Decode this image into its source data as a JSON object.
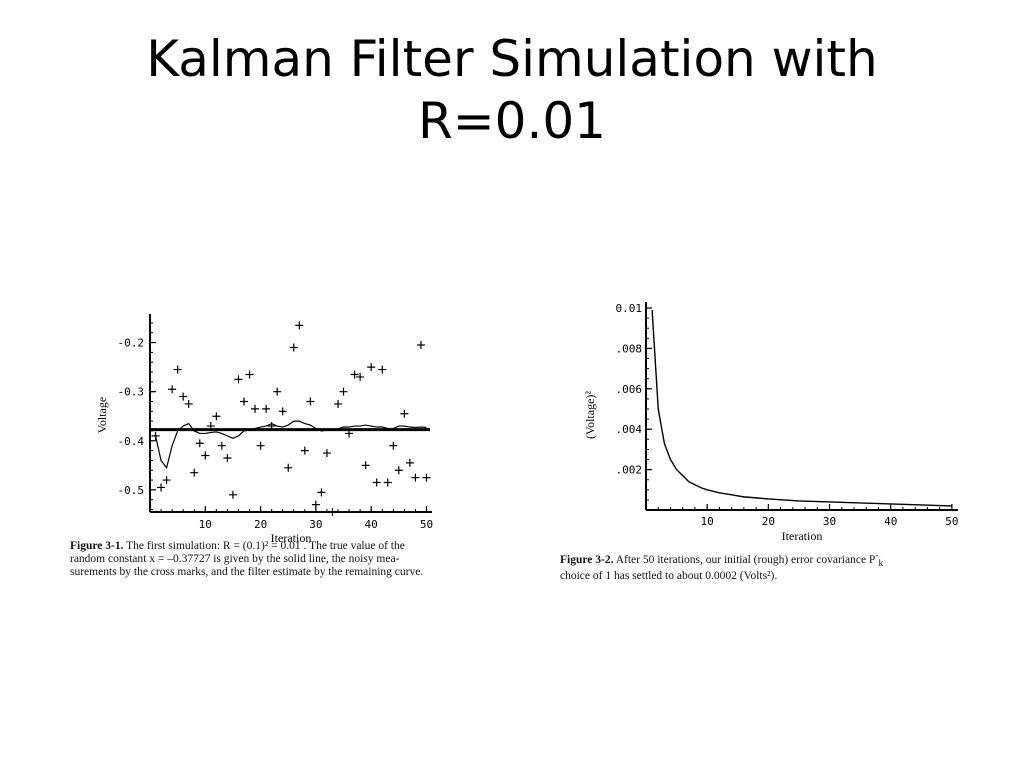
{
  "slide": {
    "title_line1": "Kalman Filter Simulation with",
    "title_line2": "R=0.01"
  },
  "chart_data": [
    {
      "type": "scatter",
      "ylabel": "Voltage",
      "xlabel": "Iteration",
      "xlim": [
        0,
        51
      ],
      "ylim": [
        -0.545,
        -0.15
      ],
      "x_ticks": [
        10,
        20,
        30,
        40,
        50
      ],
      "y_ticks": [
        -0.2,
        -0.3,
        -0.4,
        -0.5
      ],
      "y_tick_labels": [
        "-0.2",
        "-0.3",
        "-0.4",
        "-0.5"
      ],
      "true_value": -0.37727,
      "measurements": {
        "x": [
          1,
          2,
          3,
          4,
          5,
          6,
          7,
          8,
          9,
          10,
          11,
          12,
          13,
          14,
          15,
          16,
          17,
          18,
          19,
          20,
          21,
          22,
          23,
          24,
          25,
          26,
          27,
          28,
          29,
          30,
          31,
          32,
          33,
          34,
          35,
          36,
          37,
          38,
          39,
          40,
          41,
          42,
          43,
          44,
          45,
          46,
          47,
          48,
          49,
          50
        ],
        "y": [
          -0.39,
          -0.495,
          -0.48,
          -0.295,
          -0.255,
          -0.31,
          -0.325,
          -0.465,
          -0.405,
          -0.43,
          -0.37,
          -0.35,
          -0.41,
          -0.435,
          -0.51,
          -0.275,
          -0.32,
          -0.265,
          -0.335,
          -0.41,
          -0.335,
          -0.37,
          -0.3,
          -0.34,
          -0.455,
          -0.21,
          -0.165,
          -0.42,
          -0.32,
          -0.53,
          -0.505,
          -0.425,
          -0.545,
          -0.325,
          -0.3,
          -0.385,
          -0.265,
          -0.27,
          -0.45,
          -0.25,
          -0.485,
          -0.255,
          -0.485,
          -0.41,
          -0.46,
          -0.345,
          -0.445,
          -0.475,
          -0.205,
          -0.475
        ]
      },
      "estimate": {
        "x": [
          1,
          2,
          3,
          4,
          5,
          6,
          7,
          8,
          9,
          10,
          11,
          12,
          13,
          14,
          15,
          16,
          17,
          18,
          19,
          20,
          21,
          22,
          23,
          24,
          25,
          26,
          27,
          28,
          29,
          30,
          31,
          32,
          33,
          34,
          35,
          36,
          37,
          38,
          39,
          40,
          41,
          42,
          43,
          44,
          45,
          46,
          47,
          48,
          49,
          50
        ],
        "y": [
          -0.39,
          -0.44,
          -0.455,
          -0.41,
          -0.38,
          -0.37,
          -0.365,
          -0.38,
          -0.385,
          -0.385,
          -0.383,
          -0.382,
          -0.385,
          -0.39,
          -0.395,
          -0.39,
          -0.38,
          -0.378,
          -0.375,
          -0.372,
          -0.37,
          -0.365,
          -0.37,
          -0.372,
          -0.368,
          -0.36,
          -0.36,
          -0.365,
          -0.368,
          -0.375,
          -0.38,
          -0.378,
          -0.378,
          -0.376,
          -0.372,
          -0.372,
          -0.37,
          -0.37,
          -0.368,
          -0.37,
          -0.372,
          -0.372,
          -0.375,
          -0.375,
          -0.37,
          -0.37,
          -0.372,
          -0.373,
          -0.372,
          -0.373
        ]
      },
      "caption": {
        "label": "Figure 3-1.",
        "line1": "The first simulation: R = (0.1)² = 0.01 . The true value of the",
        "line2": "random constant x = –0.37727 is given by the solid line, the noisy mea-",
        "line3": "surements by the cross marks, and the filter estimate by the remaining curve."
      }
    },
    {
      "type": "line",
      "ylabel": "(Voltage)²",
      "xlabel": "Iteration",
      "xlim": [
        0,
        51
      ],
      "ylim": [
        0,
        0.0102
      ],
      "x_ticks": [
        10,
        20,
        30,
        40,
        50
      ],
      "y_ticks": [
        0.002,
        0.004,
        0.006,
        0.008,
        0.01
      ],
      "y_tick_labels": [
        ".002",
        ".004",
        ".006",
        ".008",
        "0.01"
      ],
      "series": [
        {
          "x": [
            1,
            2,
            3,
            4,
            5,
            6,
            7,
            8,
            9,
            10,
            12,
            14,
            16,
            18,
            20,
            25,
            30,
            35,
            40,
            45,
            48,
            50
          ],
          "values": [
            0.0099,
            0.005,
            0.0033,
            0.0025,
            0.002,
            0.0017,
            0.0014,
            0.00125,
            0.0011,
            0.001,
            0.00085,
            0.00075,
            0.00065,
            0.0006,
            0.00055,
            0.00045,
            0.0004,
            0.00035,
            0.0003,
            0.00025,
            0.00022,
            0.0002
          ]
        }
      ],
      "caption": {
        "label": "Figure 3-2.",
        "line1": "After 50 iterations, our initial (rough) error covariance P",
        "line1_sup": "-",
        "line1_sub": "k",
        "line2": "choice of 1 has settled to about 0.0002 (Volts²)."
      }
    }
  ]
}
